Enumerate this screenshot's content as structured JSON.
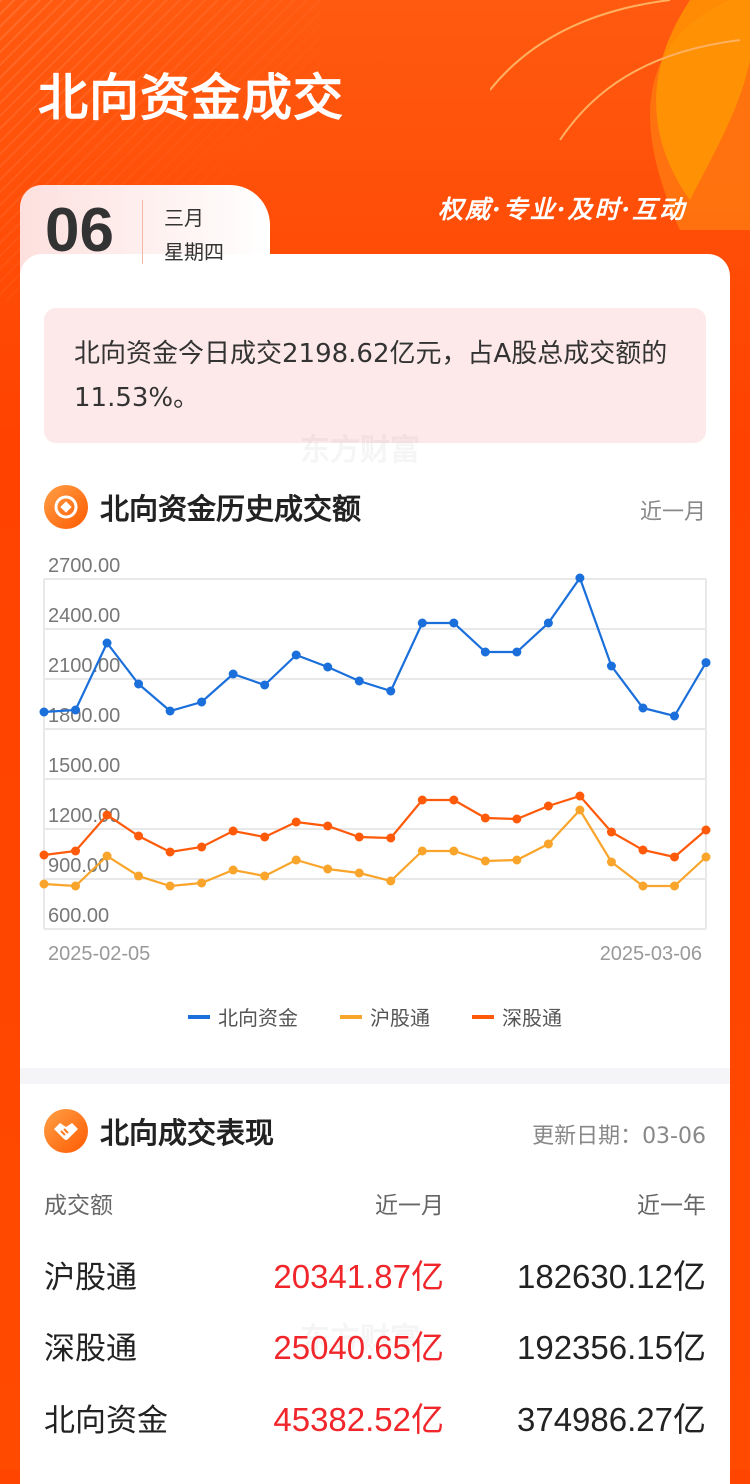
{
  "header": {
    "title": "北向资金成交",
    "slogan": "权威·专业·及时·互动"
  },
  "date": {
    "day": "06",
    "month": "三月",
    "weekday": "星期四"
  },
  "summary": "北向资金今日成交2198.62亿元，占A股总成交额的11.53%。",
  "watermark": "东方财富",
  "history": {
    "title": "北向资金历史成交额",
    "range": "近一月",
    "icon": "target-icon"
  },
  "chart_data": {
    "type": "line",
    "x_tick_labels": [
      "2025-02-05",
      "2025-03-06"
    ],
    "y_ticks": [
      "2700.00",
      "2400.00",
      "2100.00",
      "1800.00",
      "1500.00",
      "1200.00",
      "900.00",
      "600.00"
    ],
    "ylim": [
      600,
      2700
    ],
    "grid": true,
    "legend_position": "bottom",
    "series": [
      {
        "name": "北向资金",
        "color": "#1a6fdb",
        "values": [
          1902,
          1914,
          2316,
          2070,
          1908,
          1962,
          2130,
          2064,
          2244,
          2172,
          2088,
          2028,
          2436,
          2436,
          2262,
          2262,
          2436,
          2706,
          2178,
          1926,
          1878,
          2198.62
        ]
      },
      {
        "name": "沪股通",
        "color": "#f9a42a",
        "values": [
          870,
          858,
          1038,
          918,
          858,
          876,
          954,
          918,
          1014,
          960,
          936,
          888,
          1068,
          1068,
          1008,
          1014,
          1110,
          1314,
          1002,
          858,
          858,
          1032
        ]
      },
      {
        "name": "深股通",
        "color": "#ff5a0a",
        "values": [
          1044,
          1068,
          1284,
          1158,
          1062,
          1092,
          1188,
          1152,
          1242,
          1218,
          1152,
          1146,
          1374,
          1374,
          1266,
          1260,
          1338,
          1398,
          1182,
          1074,
          1032,
          1194
        ]
      }
    ]
  },
  "performance": {
    "title": "北向成交表现",
    "updated": "更新日期：03-06",
    "icon": "handshake-icon",
    "headers": [
      "成交额",
      "近一月",
      "近一年"
    ],
    "rows": [
      {
        "name": "沪股通",
        "month": "20341.87亿",
        "year": "182630.12亿"
      },
      {
        "name": "深股通",
        "month": "25040.65亿",
        "year": "192356.15亿"
      },
      {
        "name": "北向资金",
        "month": "45382.52亿",
        "year": "374986.27亿"
      }
    ]
  }
}
